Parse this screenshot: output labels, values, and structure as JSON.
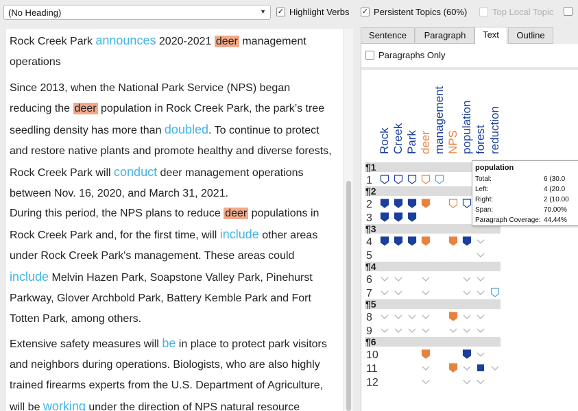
{
  "toolbar": {
    "heading_select": "(No Heading)",
    "checks": [
      {
        "label": "Highlight Verbs",
        "checked": true,
        "disabled": false
      },
      {
        "label": "Persistent Topics (60%)",
        "checked": true,
        "disabled": false
      },
      {
        "label": "Top Local Topic",
        "checked": false,
        "disabled": true
      }
    ]
  },
  "text": {
    "paragraphs": [
      [
        {
          "t": "Rock Creek Park "
        },
        {
          "t": "announces",
          "verb": true
        },
        {
          "t": " 2020-2021 "
        },
        {
          "t": "deer",
          "topic": true
        },
        {
          "t": " management operations"
        }
      ],
      [
        {
          "t": "Since 2013, when the National Park Service (NPS) began reducing the "
        },
        {
          "t": "deer",
          "topic": true
        },
        {
          "t": " population in Rock Creek Park, the park’s tree seedling density has more than "
        },
        {
          "t": "doubled",
          "verb": true
        },
        {
          "t": ". To continue to protect and restore native plants and promote healthy and diverse forests, Rock Creek Park will "
        },
        {
          "t": "conduct",
          "verb": true
        },
        {
          "t": " deer management operations between Nov. 16, 2020, and March 31, 2021."
        }
      ],
      [
        {
          "t": "During this period, the NPS plans to reduce "
        },
        {
          "t": "deer",
          "topic": true
        },
        {
          "t": " populations in Rock Creek Park and, for the first time, will "
        },
        {
          "t": "include",
          "verb": true
        },
        {
          "t": " other areas under Rock Creek Park's management. These areas could "
        },
        {
          "t": "include",
          "verb": true
        },
        {
          "t": " Melvin Hazen Park, Soapstone Valley Park, Pinehurst Parkway, Glover Archbold Park, Battery Kemble Park and Fort Totten Park, among others."
        }
      ],
      [
        {
          "t": "Extensive safety measures will "
        },
        {
          "t": "be",
          "verb": true
        },
        {
          "t": " in place to protect park visitors and neighbors during operations. Biologists, who are also highly trained firearms experts from the U.S. Department of Agriculture, will be "
        },
        {
          "t": "working",
          "verb": true
        },
        {
          "t": " under the direction of NPS natural resource"
        }
      ]
    ]
  },
  "tabs": [
    "Sentence",
    "Paragraph",
    "Text",
    "Outline"
  ],
  "active_tab": "Text",
  "paragraphs_only_label": "Paragraphs Only",
  "grid": {
    "topics": [
      {
        "label": "Rock",
        "color": "#1a3f9c"
      },
      {
        "label": "Creek",
        "color": "#1a3f9c"
      },
      {
        "label": "Park",
        "color": "#1a3f9c"
      },
      {
        "label": "deer",
        "color": "#e8823e"
      },
      {
        "label": "management",
        "color": "#1a3f9c"
      },
      {
        "label": "NPS",
        "color": "#e8823e"
      },
      {
        "label": "population",
        "color": "#1a3f9c"
      },
      {
        "label": "forest",
        "color": "#1a3f9c"
      },
      {
        "label": "reduction",
        "color": "#1a3f9c"
      }
    ],
    "rows": [
      {
        "type": "para",
        "label": "¶1"
      },
      {
        "type": "sent",
        "label": "1",
        "cells": [
          "OB",
          "OB",
          "OB",
          "OO",
          "OL",
          "",
          "",
          "",
          ""
        ]
      },
      {
        "type": "para",
        "label": "¶2"
      },
      {
        "type": "sent",
        "label": "2",
        "cells": [
          "FB",
          "FB",
          "FB",
          "FO",
          "",
          "OO",
          "OB",
          "",
          ""
        ]
      },
      {
        "type": "sent",
        "label": "3",
        "cells": [
          "FB",
          "FB",
          "FB",
          "",
          "",
          "",
          "",
          "",
          ""
        ]
      },
      {
        "type": "para",
        "label": "¶3"
      },
      {
        "type": "sent",
        "label": "4",
        "cells": [
          "FB",
          "FB",
          "FB",
          "FO",
          "",
          "FO",
          "FB",
          "V",
          ""
        ]
      },
      {
        "type": "sent",
        "label": "5",
        "cells": [
          "",
          "",
          "",
          "",
          "",
          "",
          "",
          "V",
          ""
        ]
      },
      {
        "type": "para",
        "label": "¶4"
      },
      {
        "type": "sent",
        "label": "6",
        "cells": [
          "V",
          "V",
          "",
          "V",
          "",
          "",
          "V",
          "V",
          ""
        ]
      },
      {
        "type": "sent",
        "label": "7",
        "cells": [
          "V",
          "V",
          "",
          "V",
          "",
          "",
          "V",
          "V",
          "OL"
        ]
      },
      {
        "type": "para",
        "label": "¶5"
      },
      {
        "type": "sent",
        "label": "8",
        "cells": [
          "V",
          "V",
          "V",
          "V",
          "",
          "FO",
          "V",
          "V",
          ""
        ]
      },
      {
        "type": "sent",
        "label": "9",
        "cells": [
          "V",
          "V",
          "V",
          "V",
          "",
          "V",
          "V",
          "V",
          ""
        ]
      },
      {
        "type": "para",
        "label": "¶6"
      },
      {
        "type": "sent",
        "label": "10",
        "cells": [
          "",
          "",
          "",
          "FO",
          "",
          "",
          "FB",
          "V",
          ""
        ]
      },
      {
        "type": "sent",
        "label": "11",
        "cells": [
          "",
          "",
          "",
          "V",
          "",
          "FO",
          "V",
          "SB",
          "V"
        ]
      },
      {
        "type": "sent",
        "label": "12",
        "cells": [
          "",
          "",
          "",
          "V",
          "",
          "",
          "V",
          "V",
          ""
        ]
      }
    ]
  },
  "tooltip": {
    "title": "population",
    "rows": [
      {
        "k": "Total:",
        "v": "6 (30.0"
      },
      {
        "k": "Left:",
        "v": "4 (20.0"
      },
      {
        "k": "Right:",
        "v": "2 (10.00"
      },
      {
        "k": "Span:",
        "v": "70.00%"
      },
      {
        "k": "Paragraph Coverage:",
        "v": "44.44%"
      }
    ]
  }
}
